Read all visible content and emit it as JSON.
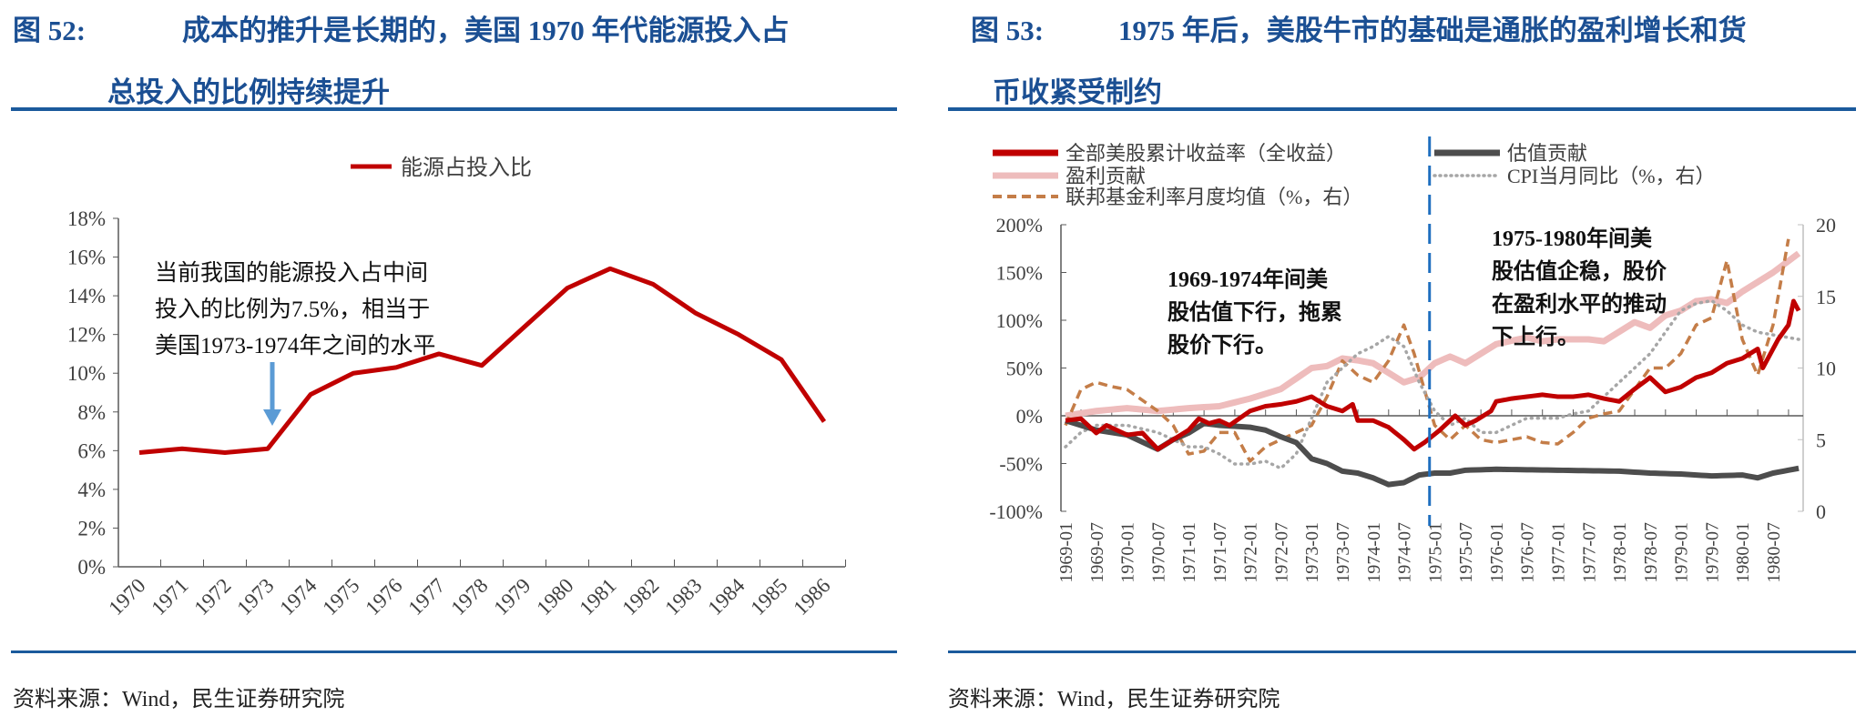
{
  "left": {
    "title_prefix": "图 52:",
    "title_line1": "成本的推升是长期的，美国 1970 年代能源投入占",
    "title_line2": "总投入的比例持续提升",
    "source": "资料来源：Wind，民生证券研究院"
  },
  "right": {
    "title_prefix": "图 53:",
    "title_line1": "1975 年后，美股牛市的基础是通胀的盈利增长和货",
    "title_line2": "币收紧受制约",
    "source": "资料来源：Wind，民生证券研究院"
  },
  "chart_data": [
    {
      "type": "line",
      "title": "",
      "legend": [
        "能源占投入比"
      ],
      "categories": [
        "1970",
        "1971",
        "1972",
        "1973",
        "1974",
        "1975",
        "1976",
        "1977",
        "1978",
        "1979",
        "1980",
        "1981",
        "1982",
        "1983",
        "1984",
        "1985",
        "1986"
      ],
      "series": [
        {
          "name": "能源占投入比",
          "color": "#c00000",
          "values": [
            5.9,
            6.1,
            5.9,
            6.1,
            8.9,
            10.0,
            10.3,
            11.0,
            10.4,
            12.4,
            14.4,
            15.4,
            14.6,
            13.1,
            12.0,
            10.7,
            7.5
          ]
        }
      ],
      "ylim": [
        0,
        18
      ],
      "yticks": [
        "0%",
        "2%",
        "4%",
        "6%",
        "8%",
        "10%",
        "12%",
        "14%",
        "16%",
        "18%"
      ],
      "annotation": [
        "当前我国的能源投入占中间",
        "投入的比例为7.5%，相当于",
        "美国1973-1974年之间的水平"
      ],
      "arrow_at": "1973"
    },
    {
      "type": "line",
      "x_start": "1969-01",
      "months": 144,
      "xticks": [
        "1969-01",
        "1969-07",
        "1970-01",
        "1970-07",
        "1971-01",
        "1971-07",
        "1972-01",
        "1972-07",
        "1973-01",
        "1973-07",
        "1974-01",
        "1974-07",
        "1975-01",
        "1975-07",
        "1976-01",
        "1976-07",
        "1977-01",
        "1977-07",
        "1978-01",
        "1978-07",
        "1979-01",
        "1979-07",
        "1980-01",
        "1980-07"
      ],
      "ylim_left": [
        -100,
        200
      ],
      "yticks_left": [
        "-100%",
        "-50%",
        "0%",
        "50%",
        "100%",
        "150%",
        "200%"
      ],
      "ylim_right": [
        0,
        20
      ],
      "yticks_right": [
        "0",
        "5",
        "10",
        "15",
        "20"
      ],
      "divider_month": "1974-12",
      "annotations": [
        [
          "1969-1974年间美",
          "股估值下行，拖累",
          "股价下行。"
        ],
        [
          "1975-1980年间美",
          "股估值企稳，股价",
          "在盈利水平的推动",
          "下上行。"
        ]
      ],
      "series": [
        {
          "name": "全部美股累计收益率（全收益）",
          "axis": "left",
          "style": "solid",
          "color": "#c00000",
          "points": [
            [
              0,
              -5
            ],
            [
              3,
              -3
            ],
            [
              6,
              -18
            ],
            [
              8,
              -10
            ],
            [
              12,
              -20
            ],
            [
              15,
              -18
            ],
            [
              18,
              -35
            ],
            [
              21,
              -25
            ],
            [
              24,
              -15
            ],
            [
              26,
              -3
            ],
            [
              28,
              -8
            ],
            [
              30,
              -5
            ],
            [
              32,
              -10
            ],
            [
              36,
              5
            ],
            [
              39,
              10
            ],
            [
              42,
              12
            ],
            [
              45,
              15
            ],
            [
              48,
              20
            ],
            [
              51,
              10
            ],
            [
              54,
              5
            ],
            [
              56,
              12
            ],
            [
              57,
              -5
            ],
            [
              60,
              -5
            ],
            [
              63,
              -12
            ],
            [
              66,
              -25
            ],
            [
              68,
              -35
            ],
            [
              70,
              -28
            ],
            [
              73,
              -15
            ],
            [
              76,
              0
            ],
            [
              78,
              -10
            ],
            [
              80,
              -5
            ],
            [
              83,
              5
            ],
            [
              84,
              15
            ],
            [
              87,
              18
            ],
            [
              90,
              20
            ],
            [
              93,
              22
            ],
            [
              96,
              20
            ],
            [
              99,
              20
            ],
            [
              102,
              22
            ],
            [
              105,
              18
            ],
            [
              108,
              15
            ],
            [
              111,
              28
            ],
            [
              114,
              40
            ],
            [
              117,
              25
            ],
            [
              120,
              30
            ],
            [
              123,
              40
            ],
            [
              126,
              45
            ],
            [
              129,
              55
            ],
            [
              132,
              60
            ],
            [
              135,
              70
            ],
            [
              136,
              50
            ],
            [
              139,
              80
            ],
            [
              141,
              95
            ],
            [
              142,
              120
            ],
            [
              143,
              110
            ]
          ]
        },
        {
          "name": "估值贡献",
          "axis": "left",
          "style": "solid",
          "color": "#4d4d4d",
          "points": [
            [
              0,
              -5
            ],
            [
              6,
              -15
            ],
            [
              12,
              -20
            ],
            [
              18,
              -35
            ],
            [
              21,
              -25
            ],
            [
              24,
              -18
            ],
            [
              27,
              -8
            ],
            [
              30,
              -10
            ],
            [
              36,
              -12
            ],
            [
              39,
              -15
            ],
            [
              42,
              -22
            ],
            [
              45,
              -28
            ],
            [
              48,
              -45
            ],
            [
              51,
              -50
            ],
            [
              54,
              -58
            ],
            [
              57,
              -60
            ],
            [
              60,
              -65
            ],
            [
              63,
              -72
            ],
            [
              66,
              -70
            ],
            [
              69,
              -62
            ],
            [
              72,
              -60
            ],
            [
              75,
              -60
            ],
            [
              78,
              -57
            ],
            [
              84,
              -56
            ],
            [
              96,
              -57
            ],
            [
              108,
              -58
            ],
            [
              114,
              -60
            ],
            [
              120,
              -61
            ],
            [
              126,
              -63
            ],
            [
              132,
              -62
            ],
            [
              135,
              -65
            ],
            [
              138,
              -60
            ],
            [
              143,
              -55
            ]
          ]
        },
        {
          "name": "盈利贡献",
          "axis": "left",
          "style": "solid",
          "color": "#eebcbc",
          "points": [
            [
              0,
              0
            ],
            [
              6,
              5
            ],
            [
              12,
              8
            ],
            [
              18,
              5
            ],
            [
              24,
              8
            ],
            [
              30,
              10
            ],
            [
              36,
              18
            ],
            [
              42,
              28
            ],
            [
              48,
              50
            ],
            [
              51,
              52
            ],
            [
              54,
              60
            ],
            [
              57,
              58
            ],
            [
              60,
              55
            ],
            [
              66,
              35
            ],
            [
              69,
              40
            ],
            [
              72,
              55
            ],
            [
              75,
              62
            ],
            [
              78,
              55
            ],
            [
              84,
              75
            ],
            [
              90,
              82
            ],
            [
              93,
              78
            ],
            [
              96,
              80
            ],
            [
              102,
              80
            ],
            [
              105,
              78
            ],
            [
              108,
              88
            ],
            [
              111,
              98
            ],
            [
              114,
              92
            ],
            [
              117,
              105
            ],
            [
              120,
              110
            ],
            [
              123,
              120
            ],
            [
              126,
              122
            ],
            [
              129,
              118
            ],
            [
              132,
              130
            ],
            [
              138,
              150
            ],
            [
              143,
              170
            ]
          ]
        },
        {
          "name": "CPI当月同比（%，右）",
          "axis": "right",
          "style": "dotted",
          "color": "#a6a6a6",
          "points": [
            [
              0,
              4.5
            ],
            [
              3,
              5.5
            ],
            [
              6,
              6
            ],
            [
              12,
              6
            ],
            [
              18,
              5.5
            ],
            [
              24,
              4.5
            ],
            [
              27,
              4.5
            ],
            [
              30,
              4
            ],
            [
              33,
              3.3
            ],
            [
              36,
              3.3
            ],
            [
              39,
              3.5
            ],
            [
              42,
              3
            ],
            [
              45,
              4
            ],
            [
              48,
              6.5
            ],
            [
              51,
              9
            ],
            [
              54,
              10
            ],
            [
              57,
              11
            ],
            [
              60,
              11.5
            ],
            [
              63,
              12.2
            ],
            [
              66,
              11.5
            ],
            [
              69,
              9
            ],
            [
              72,
              7
            ],
            [
              75,
              6
            ],
            [
              78,
              6.5
            ],
            [
              81,
              5.5
            ],
            [
              84,
              5.5
            ],
            [
              87,
              6
            ],
            [
              90,
              6.5
            ],
            [
              93,
              6.5
            ],
            [
              96,
              6.5
            ],
            [
              99,
              6.8
            ],
            [
              102,
              7
            ],
            [
              105,
              8
            ],
            [
              108,
              9
            ],
            [
              111,
              10
            ],
            [
              114,
              11
            ],
            [
              117,
              12.5
            ],
            [
              120,
              14
            ],
            [
              123,
              14.5
            ],
            [
              126,
              14.7
            ],
            [
              129,
              14
            ],
            [
              132,
              13
            ],
            [
              135,
              12.5
            ],
            [
              143,
              12
            ]
          ]
        },
        {
          "name": "联邦基金利率月度均值（%，右）",
          "axis": "right",
          "style": "dashed",
          "color": "#c47d48",
          "points": [
            [
              0,
              6
            ],
            [
              3,
              8.5
            ],
            [
              6,
              9
            ],
            [
              9,
              8.7
            ],
            [
              12,
              8.5
            ],
            [
              14,
              8
            ],
            [
              18,
              7
            ],
            [
              21,
              6
            ],
            [
              24,
              4
            ],
            [
              27,
              4.2
            ],
            [
              30,
              5.5
            ],
            [
              33,
              5.5
            ],
            [
              36,
              3.5
            ],
            [
              39,
              4.5
            ],
            [
              42,
              5
            ],
            [
              45,
              5.5
            ],
            [
              48,
              6
            ],
            [
              51,
              8
            ],
            [
              54,
              10.5
            ],
            [
              57,
              9.5
            ],
            [
              60,
              9
            ],
            [
              63,
              10.5
            ],
            [
              66,
              13
            ],
            [
              68,
              11
            ],
            [
              70,
              8.5
            ],
            [
              72,
              6
            ],
            [
              75,
              5
            ],
            [
              78,
              6
            ],
            [
              81,
              5
            ],
            [
              84,
              4.8
            ],
            [
              87,
              5
            ],
            [
              90,
              5.2
            ],
            [
              93,
              4.8
            ],
            [
              96,
              4.7
            ],
            [
              99,
              5.5
            ],
            [
              102,
              6.5
            ],
            [
              105,
              6.8
            ],
            [
              108,
              7
            ],
            [
              111,
              8.5
            ],
            [
              114,
              10
            ],
            [
              117,
              10
            ],
            [
              120,
              11
            ],
            [
              123,
              13
            ],
            [
              126,
              13.5
            ],
            [
              129,
              17.5
            ],
            [
              132,
              12
            ],
            [
              135,
              9.5
            ],
            [
              138,
              13
            ],
            [
              141,
              19
            ]
          ]
        }
      ]
    }
  ]
}
